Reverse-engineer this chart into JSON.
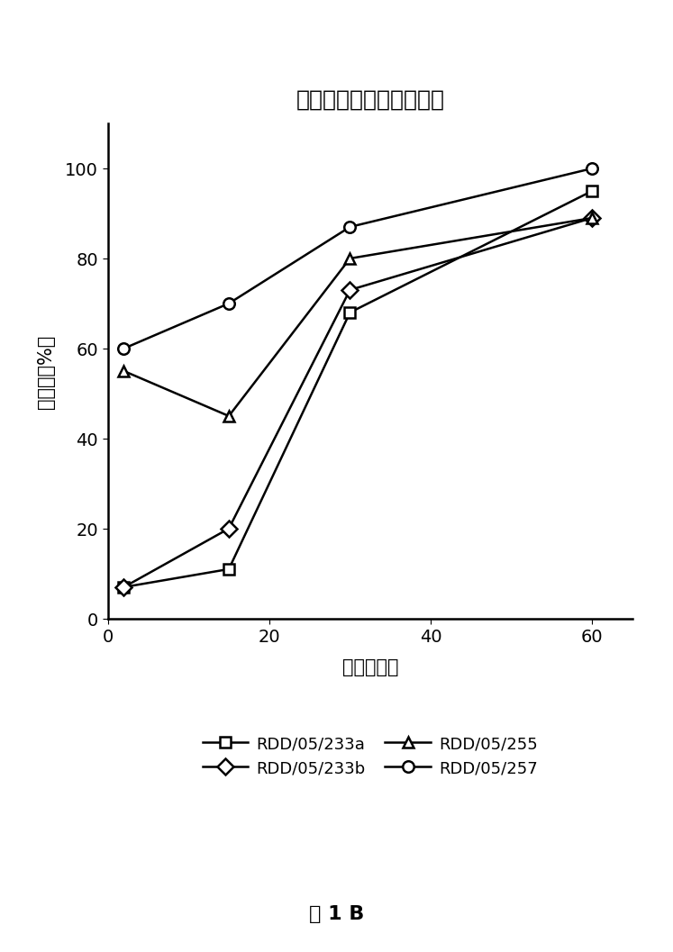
{
  "title": "从制剂中释放伊洛前列素",
  "xlabel": "时间（分）",
  "ylabel": "百分比（%）",
  "caption": "图 1 B",
  "xlim": [
    0,
    65
  ],
  "ylim": [
    0,
    110
  ],
  "xticks": [
    0,
    20,
    40,
    60
  ],
  "yticks": [
    0,
    20,
    40,
    60,
    80,
    100
  ],
  "series": [
    {
      "label": "RDD/05/233a",
      "x": [
        2,
        15,
        30,
        60
      ],
      "y": [
        7,
        11,
        68,
        95
      ],
      "marker": "s",
      "color": "#000000",
      "linestyle": "-"
    },
    {
      "label": "RDD/05/233b",
      "x": [
        2,
        15,
        30,
        60
      ],
      "y": [
        7,
        20,
        73,
        89
      ],
      "marker": "D",
      "color": "#000000",
      "linestyle": "-"
    },
    {
      "label": "RDD/05/255",
      "x": [
        2,
        15,
        30,
        60
      ],
      "y": [
        55,
        45,
        80,
        89
      ],
      "marker": "^",
      "color": "#000000",
      "linestyle": "-"
    },
    {
      "label": "RDD/05/257",
      "x": [
        2,
        15,
        30,
        60
      ],
      "y": [
        60,
        70,
        87,
        100
      ],
      "marker": "o",
      "color": "#000000",
      "linestyle": "-"
    }
  ],
  "background_color": "#ffffff",
  "title_fontsize": 18,
  "label_fontsize": 15,
  "tick_fontsize": 14,
  "legend_fontsize": 13,
  "caption_fontsize": 16,
  "marker_size": 9,
  "line_width": 1.8
}
